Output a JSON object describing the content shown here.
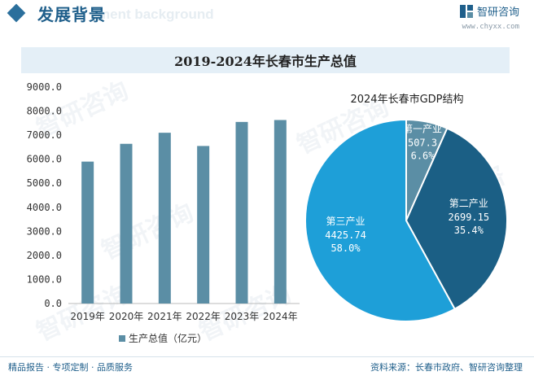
{
  "header": {
    "title": "发展背景",
    "watermark": "ment background",
    "logo_text": "智研咨询",
    "logo_url": "www.chyxx.com"
  },
  "watermark_text": "智研咨询",
  "chart_title": "2019-2024年长春市生产总值",
  "colors": {
    "bar": "#5b8ea5",
    "primary": "#1f5f8b",
    "pie_primary": "#5b8ea5",
    "pie_secondary": "#1b5f85",
    "pie_tertiary": "#1e9fd8"
  },
  "chart_data": [
    {
      "type": "bar",
      "categories": [
        "2019年",
        "2020年",
        "2021年",
        "2022年",
        "2023年",
        "2024年"
      ],
      "series": [
        {
          "name": "生产总值（亿元）",
          "values": [
            5900,
            6640,
            7100,
            6550,
            7550,
            7630
          ]
        }
      ],
      "ylim": [
        0,
        9000
      ],
      "yticks": [
        "0.0",
        "1000.0",
        "2000.0",
        "3000.0",
        "4000.0",
        "5000.0",
        "6000.0",
        "7000.0",
        "8000.0",
        "9000.0"
      ],
      "legend": "bottom"
    },
    {
      "type": "pie",
      "title": "2024年长春市GDP结构",
      "slices": [
        {
          "label": "第一产业",
          "value": 507.3,
          "value_label": "507.3",
          "pct_label": "6.6%"
        },
        {
          "label": "第二产业",
          "value": 2699.15,
          "value_label": "2699.15",
          "pct_label": "35.4%"
        },
        {
          "label": "第三产业",
          "value": 4425.74,
          "value_label": "4425.74",
          "pct_label": "58.0%"
        }
      ]
    }
  ],
  "footer": {
    "left": "精品报告 · 专项定制 · 品质服务",
    "right": "资料来源：长春市政府、智研咨询整理"
  }
}
